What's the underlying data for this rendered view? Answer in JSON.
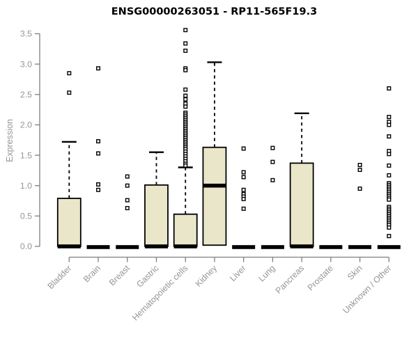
{
  "chart_data": {
    "type": "boxplot",
    "title": "ENSG00000263051 - RP11-565F19.3",
    "ylabel": "Expression",
    "xlabel": "",
    "ylim": [
      0,
      3.5
    ],
    "yticks": [
      0,
      0.5,
      1,
      1.5,
      2,
      2.5,
      3,
      3.5
    ],
    "grid": false,
    "legend": null,
    "box_fill": "#EAE6CA",
    "box_border": "#000000",
    "axis_color": "#7F7F7F",
    "label_color": "#959595",
    "outlier_fill": "#FFFFFF",
    "outlier_border": "#000000",
    "categories": [
      "Bladder",
      "Brain",
      "Breast",
      "Gastric",
      "Hematopoietic cells",
      "Kidney",
      "Liver",
      "Lung",
      "Pancreas",
      "Prostate",
      "Skin",
      "Unknown / Other"
    ],
    "series": [
      {
        "name": "Bladder",
        "whisker_low": 0,
        "q1": 0,
        "median": 0,
        "q3": 0.79,
        "whisker_high": 1.72,
        "outliers": [
          2.85,
          2.53
        ]
      },
      {
        "name": "Brain",
        "whisker_low": 0,
        "q1": 0,
        "median": 0,
        "q3": 0,
        "whisker_high": 0,
        "outliers": [
          2.93,
          1.73,
          1.53,
          1.02,
          0.93
        ]
      },
      {
        "name": "Breast",
        "whisker_low": 0,
        "q1": 0,
        "median": 0,
        "q3": 0,
        "whisker_high": 0,
        "outliers": [
          1.15,
          1.0,
          0.76,
          0.63
        ]
      },
      {
        "name": "Gastric",
        "whisker_low": 0,
        "q1": 0,
        "median": 0,
        "q3": 1.01,
        "whisker_high": 1.55,
        "outliers": []
      },
      {
        "name": "Hematopoietic cells",
        "whisker_low": 0,
        "q1": 0,
        "median": 0,
        "q3": 0.53,
        "whisker_high": 1.3,
        "outliers": [
          3.56,
          3.34,
          3.22,
          2.93,
          2.9,
          2.58,
          2.48,
          2.42,
          2.35,
          2.3,
          2.2,
          2.17,
          2.14,
          2.11,
          2.08,
          2.05,
          2.02,
          1.99,
          1.96,
          1.93,
          1.9,
          1.87,
          1.84,
          1.81,
          1.78,
          1.75,
          1.72,
          1.69,
          1.66,
          1.63,
          1.6,
          1.56,
          1.52,
          1.48,
          1.44,
          1.4,
          1.36,
          1.33
        ]
      },
      {
        "name": "Kidney",
        "whisker_low": 0.02,
        "q1": 0.02,
        "median": 1.0,
        "q3": 1.63,
        "whisker_high": 3.03,
        "outliers": []
      },
      {
        "name": "Liver",
        "whisker_low": 0,
        "q1": 0,
        "median": 0,
        "q3": 0,
        "whisker_high": 0,
        "outliers": [
          1.61,
          1.22,
          1.14,
          0.93,
          0.86,
          0.82,
          0.78,
          0.62
        ]
      },
      {
        "name": "Lung",
        "whisker_low": 0,
        "q1": 0,
        "median": 0,
        "q3": 0,
        "whisker_high": 0,
        "outliers": [
          1.62,
          1.39,
          1.09
        ]
      },
      {
        "name": "Pancreas",
        "whisker_low": 0,
        "q1": 0,
        "median": 0,
        "q3": 1.37,
        "whisker_high": 2.19,
        "outliers": []
      },
      {
        "name": "Prostate",
        "whisker_low": 0,
        "q1": 0,
        "median": 0,
        "q3": 0,
        "whisker_high": 0,
        "outliers": []
      },
      {
        "name": "Skin",
        "whisker_low": 0,
        "q1": 0,
        "median": 0,
        "q3": 0,
        "whisker_high": 0,
        "outliers": [
          1.34,
          1.26,
          0.95
        ]
      },
      {
        "name": "Unknown / Other",
        "whisker_low": 0,
        "q1": 0,
        "median": 0,
        "q3": 0,
        "whisker_high": 0,
        "outliers": [
          2.6,
          2.13,
          2.05,
          2.0,
          1.81,
          1.57,
          1.52,
          1.33,
          1.17,
          1.04,
          1.01,
          0.98,
          0.95,
          0.92,
          0.89,
          0.86,
          0.83,
          0.8,
          0.77,
          0.65,
          0.62,
          0.59,
          0.56,
          0.53,
          0.5,
          0.47,
          0.44,
          0.41,
          0.38,
          0.35,
          0.31,
          0.17
        ]
      }
    ]
  }
}
